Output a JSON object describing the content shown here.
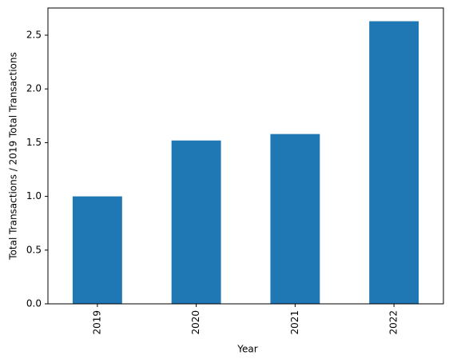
{
  "chart_data": {
    "type": "bar",
    "xlabel": "Year",
    "ylabel": "Total Transactions / 2019 Total Transactions",
    "categories": [
      "2019",
      "2020",
      "2021",
      "2022"
    ],
    "values": [
      1.0,
      1.52,
      1.58,
      2.63
    ],
    "color": "#1f77b4",
    "ylim": [
      0,
      2.753
    ],
    "yticks": [
      {
        "value": 0,
        "label": "0.0"
      },
      0.5,
      {
        "value": 1,
        "label": "1.0"
      },
      1.5,
      {
        "value": 2,
        "label": "2.0"
      },
      2.5
    ],
    "grid": false
  }
}
